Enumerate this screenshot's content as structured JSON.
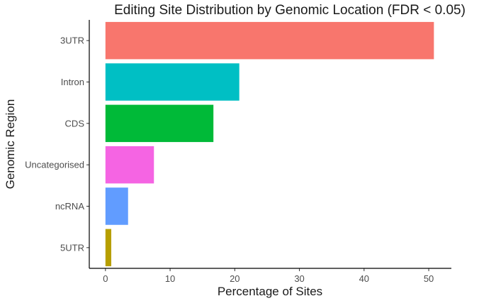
{
  "chart_data": {
    "type": "bar",
    "orientation": "horizontal",
    "title": "Editing Site Distribution by Genomic Location  (FDR < 0.05)",
    "xlabel": "Percentage of Sites",
    "ylabel": "Genomic Region",
    "categories": [
      "3UTR",
      "Intron",
      "CDS",
      "Uncategorised",
      "ncRNA",
      "5UTR"
    ],
    "values": [
      50.8,
      20.7,
      16.7,
      7.5,
      3.5,
      0.9
    ],
    "colors": [
      "#F8766D",
      "#00BFC4",
      "#00BA38",
      "#F564E3",
      "#619CFF",
      "#B79F00"
    ],
    "xlim": [
      -2.5,
      53.5
    ],
    "xticks": [
      0,
      10,
      20,
      30,
      40,
      50
    ],
    "grid": false,
    "legend": "none"
  }
}
